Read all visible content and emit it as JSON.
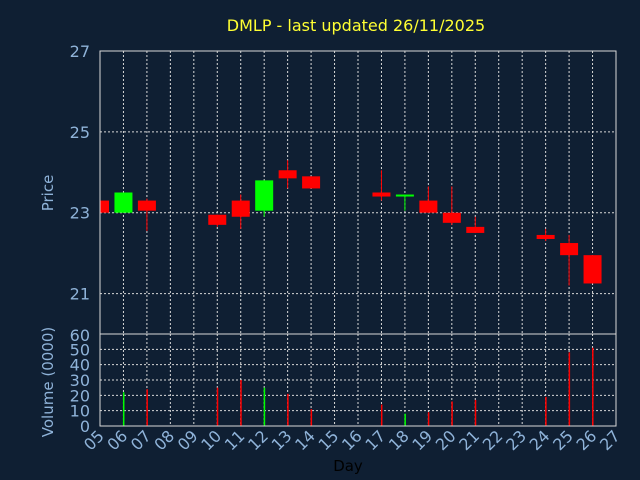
{
  "chart_data": [
    {
      "type": "candlestick",
      "title": "DMLP - last updated 26/11/2025",
      "ylabel": "Price",
      "ylim": [
        20,
        27
      ],
      "yticks": [
        "21",
        "23",
        "25",
        "27"
      ],
      "grid": true,
      "colors": {
        "up": "#00ff00",
        "down": "#ff0000",
        "background": "#0f1f33",
        "text": "#8fb3d9",
        "title": "#ffff33"
      },
      "candles": [
        {
          "day": 5,
          "open": 23.3,
          "high": 23.35,
          "low": 23.0,
          "close": 23.0
        },
        {
          "day": 6,
          "open": 23.0,
          "high": 23.5,
          "low": 23.0,
          "close": 23.5
        },
        {
          "day": 7,
          "open": 23.3,
          "high": 23.35,
          "low": 22.55,
          "close": 23.05
        },
        {
          "day": 10,
          "open": 22.95,
          "high": 22.95,
          "low": 22.65,
          "close": 22.7
        },
        {
          "day": 11,
          "open": 23.3,
          "high": 23.45,
          "low": 22.6,
          "close": 22.9
        },
        {
          "day": 12,
          "open": 23.05,
          "high": 23.8,
          "low": 22.9,
          "close": 23.8
        },
        {
          "day": 13,
          "open": 24.05,
          "high": 24.3,
          "low": 23.6,
          "close": 23.85
        },
        {
          "day": 14,
          "open": 23.9,
          "high": 23.9,
          "low": 23.6,
          "close": 23.6
        },
        {
          "day": 17,
          "open": 23.5,
          "high": 24.05,
          "low": 23.3,
          "close": 23.4
        },
        {
          "day": 18,
          "open": 23.4,
          "high": 23.45,
          "low": 23.05,
          "close": 23.45
        },
        {
          "day": 19,
          "open": 23.3,
          "high": 23.65,
          "low": 23.0,
          "close": 23.0
        },
        {
          "day": 20,
          "open": 23.0,
          "high": 23.65,
          "low": 22.7,
          "close": 22.75
        },
        {
          "day": 21,
          "open": 22.65,
          "high": 22.9,
          "low": 22.5,
          "close": 22.5
        },
        {
          "day": 24,
          "open": 22.45,
          "high": 22.6,
          "low": 22.3,
          "close": 22.35
        },
        {
          "day": 25,
          "open": 22.25,
          "high": 22.45,
          "low": 21.2,
          "close": 21.95
        },
        {
          "day": 26,
          "open": 21.95,
          "high": 21.95,
          "low": 21.25,
          "close": 21.25
        }
      ]
    },
    {
      "type": "bar",
      "ylabel": "Volume (0000)",
      "xlabel": "Day",
      "ylim": [
        0,
        60
      ],
      "yticks": [
        "0",
        "10",
        "20",
        "30",
        "40",
        "50",
        "60"
      ],
      "categories": [
        "05",
        "06",
        "07",
        "08",
        "09",
        "10",
        "11",
        "12",
        "13",
        "14",
        "15",
        "16",
        "17",
        "18",
        "19",
        "20",
        "21",
        "22",
        "23",
        "24",
        "25",
        "26",
        "27"
      ],
      "volumes": [
        {
          "day": 6,
          "value": 22,
          "up": true
        },
        {
          "day": 7,
          "value": 24,
          "up": false
        },
        {
          "day": 10,
          "value": 25,
          "up": false
        },
        {
          "day": 11,
          "value": 30,
          "up": false
        },
        {
          "day": 12,
          "value": 25,
          "up": true
        },
        {
          "day": 13,
          "value": 21,
          "up": false
        },
        {
          "day": 14,
          "value": 11,
          "up": false
        },
        {
          "day": 17,
          "value": 14,
          "up": false
        },
        {
          "day": 18,
          "value": 8,
          "up": true
        },
        {
          "day": 19,
          "value": 9,
          "up": false
        },
        {
          "day": 20,
          "value": 16,
          "up": false
        },
        {
          "day": 21,
          "value": 17,
          "up": false
        },
        {
          "day": 24,
          "value": 19,
          "up": false
        },
        {
          "day": 25,
          "value": 48,
          "up": false
        },
        {
          "day": 26,
          "value": 51,
          "up": false
        }
      ]
    }
  ]
}
